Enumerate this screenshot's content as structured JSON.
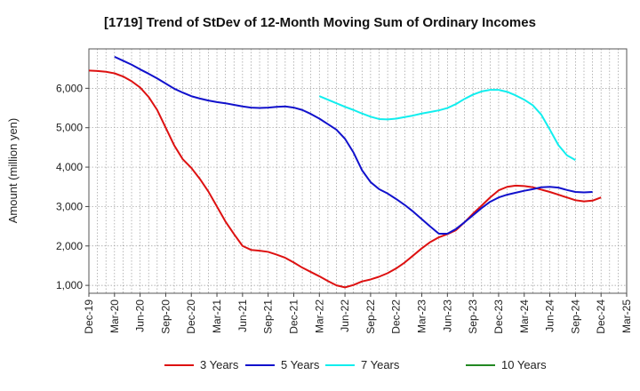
{
  "chart_data": {
    "type": "line",
    "title": "[1719]  Trend of StDev of 12-Month Moving Sum of Ordinary Incomes",
    "ylabel": "Amount (million yen)",
    "xlabel": "",
    "ylim": [
      800,
      7000
    ],
    "yticks": [
      1000,
      2000,
      3000,
      4000,
      5000,
      6000
    ],
    "ytick_labels": [
      "1,000",
      "2,000",
      "3,000",
      "4,000",
      "5,000",
      "6,000"
    ],
    "x_tick_labels": [
      "Dec-19",
      "Mar-20",
      "Jun-20",
      "Sep-20",
      "Dec-20",
      "Mar-21",
      "Jun-21",
      "Sep-21",
      "Dec-21",
      "Mar-22",
      "Jun-22",
      "Sep-22",
      "Dec-22",
      "Mar-23",
      "Jun-23",
      "Sep-23",
      "Dec-23",
      "Mar-24",
      "Jun-24",
      "Sep-24",
      "Dec-24",
      "Mar-25"
    ],
    "x_start": "Dec-19",
    "grid": true,
    "legend_position": "bottom",
    "series": [
      {
        "name": "3 Years",
        "color": "#dd1111",
        "start_index": 0,
        "values": [
          6450,
          6440,
          6420,
          6380,
          6300,
          6180,
          6020,
          5780,
          5450,
          5000,
          4550,
          4200,
          3980,
          3700,
          3380,
          3000,
          2620,
          2300,
          2000,
          1900,
          1880,
          1850,
          1780,
          1700,
          1580,
          1450,
          1340,
          1230,
          1110,
          1000,
          950,
          1010,
          1100,
          1150,
          1220,
          1310,
          1430,
          1580,
          1760,
          1940,
          2100,
          2220,
          2300,
          2400,
          2600,
          2820,
          3020,
          3230,
          3410,
          3500,
          3530,
          3520,
          3490,
          3430,
          3370,
          3300,
          3230,
          3160,
          3130,
          3150,
          3230
        ]
      },
      {
        "name": "5 Years",
        "color": "#1111cc",
        "start_index": 3,
        "values": [
          6800,
          6700,
          6600,
          6480,
          6370,
          6250,
          6120,
          5990,
          5890,
          5800,
          5740,
          5690,
          5650,
          5620,
          5580,
          5540,
          5510,
          5500,
          5510,
          5530,
          5540,
          5510,
          5450,
          5350,
          5230,
          5090,
          4950,
          4720,
          4370,
          3920,
          3620,
          3440,
          3330,
          3190,
          3040,
          2870,
          2680,
          2490,
          2310,
          2310,
          2430,
          2600,
          2780,
          2960,
          3120,
          3230,
          3300,
          3350,
          3400,
          3440,
          3490,
          3500,
          3480,
          3420,
          3370,
          3360,
          3370
        ]
      },
      {
        "name": "7 Years",
        "color": "#11eeee",
        "start_index": 27,
        "values": [
          5800,
          5710,
          5620,
          5530,
          5450,
          5360,
          5280,
          5220,
          5210,
          5230,
          5270,
          5310,
          5360,
          5400,
          5440,
          5500,
          5600,
          5730,
          5840,
          5920,
          5960,
          5960,
          5910,
          5820,
          5710,
          5570,
          5330,
          4950,
          4560,
          4300,
          4180
        ]
      },
      {
        "name": "10 Years",
        "color": "#228822",
        "start_index": 0,
        "values": []
      }
    ]
  }
}
